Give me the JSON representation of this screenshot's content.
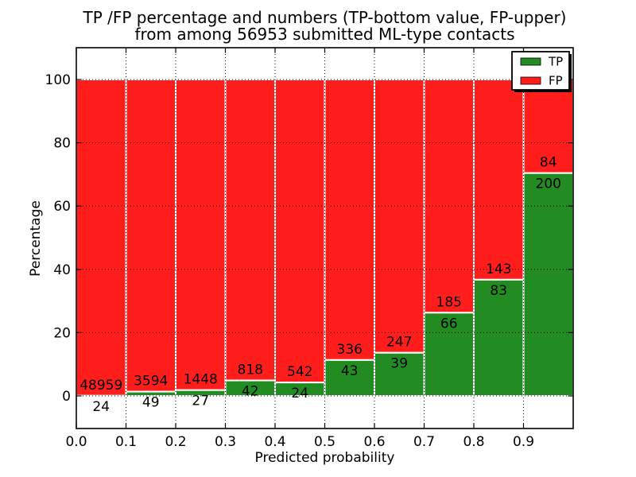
{
  "chart_data": {
    "type": "bar",
    "stacked": true,
    "title_line1": "TP /FP percentage and numbers (TP-bottom value, FP-upper)",
    "title_line2": "from among 56953 submitted ML-type contacts",
    "xlabel": "Predicted probability",
    "ylabel": "Percentage",
    "x_tick_labels": [
      "0.0",
      "0.1",
      "0.2",
      "0.3",
      "0.4",
      "0.5",
      "0.6",
      "0.7",
      "0.8",
      "0.9"
    ],
    "x_tick_values": [
      0.0,
      0.1,
      0.2,
      0.3,
      0.4,
      0.5,
      0.6,
      0.7,
      0.8,
      0.9
    ],
    "y_tick_values": [
      0,
      20,
      40,
      60,
      80,
      100
    ],
    "xlim": [
      0,
      1
    ],
    "ylim": [
      -10.3,
      110.05
    ],
    "grid": true,
    "grid_style": "dotted",
    "bin_width": 0.1,
    "bins": [
      {
        "x_start": 0.0,
        "tp": 24,
        "fp": 48959
      },
      {
        "x_start": 0.1,
        "tp": 49,
        "fp": 3594
      },
      {
        "x_start": 0.2,
        "tp": 27,
        "fp": 1448
      },
      {
        "x_start": 0.3,
        "tp": 42,
        "fp": 818
      },
      {
        "x_start": 0.4,
        "tp": 24,
        "fp": 542
      },
      {
        "x_start": 0.5,
        "tp": 43,
        "fp": 336
      },
      {
        "x_start": 0.6,
        "tp": 39,
        "fp": 247
      },
      {
        "x_start": 0.7,
        "tp": 66,
        "fp": 185
      },
      {
        "x_start": 0.8,
        "tp": 83,
        "fp": 143
      },
      {
        "x_start": 0.9,
        "tp": 200,
        "fp": 84
      }
    ],
    "series": [
      {
        "name": "TP",
        "color": "#228c22",
        "position": "bottom"
      },
      {
        "name": "FP",
        "color": "#ff1e1c",
        "position": "top"
      }
    ],
    "bar_edge_color": "#ffffff",
    "legend": {
      "position": "upper right",
      "entries": [
        {
          "label": "TP",
          "color": "#228c22"
        },
        {
          "label": "FP",
          "color": "#ff1e1c"
        }
      ]
    },
    "colors": {
      "background": "#ffffff",
      "text": "#000000",
      "grid": "#000000",
      "spine": "#000000"
    }
  }
}
